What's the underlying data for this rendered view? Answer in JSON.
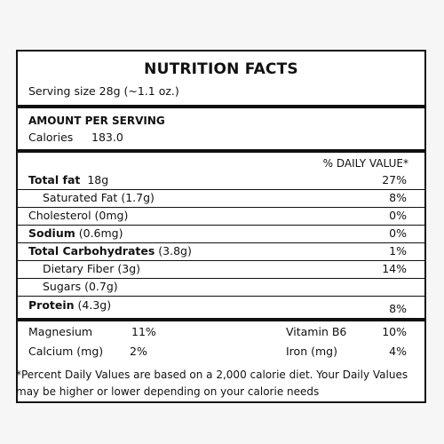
{
  "title": "NUTRITION FACTS",
  "serving_size": "Serving size 28g (~1.1 oz.)",
  "amount_per_serving": "AMOUNT PER SERVING",
  "calories": {
    "label": "Calories",
    "value": "183.0"
  },
  "daily_value_header": "% DAILY VALUE*",
  "nutrients": [
    {
      "name": "Total fat",
      "amount": "18g",
      "dv": "27%"
    },
    {
      "name": "Saturated Fat",
      "amount": "(1.7g)",
      "dv": "8%"
    },
    {
      "name": "Cholesterol",
      "amount": "(0mg)",
      "dv": "0%"
    },
    {
      "name": "Sodium",
      "amount": "(0.6mg)",
      "dv": "0%"
    },
    {
      "name": "Total Carbohydrates",
      "amount": "(3.8g)",
      "dv": "1%"
    },
    {
      "name": "Dietary Fiber",
      "amount": "(3g)",
      "dv": "14%"
    },
    {
      "name": "Sugars",
      "amount": "(0.7g)",
      "dv": ""
    },
    {
      "name": "Protein",
      "amount": "(4.3g)",
      "dv": "8%"
    }
  ],
  "minerals": [
    {
      "name": "Magnesium",
      "dv": "11%"
    },
    {
      "name": "Vitamin B6",
      "dv": "10%"
    },
    {
      "name": "Calcium (mg)",
      "dv": "2%"
    },
    {
      "name": "Iron (mg)",
      "dv": "4%"
    }
  ],
  "footnote": "*Percent Daily Values are based on a 2,000 calorie diet. Your Daily Values may be higher or lower depending on your calorie needs"
}
